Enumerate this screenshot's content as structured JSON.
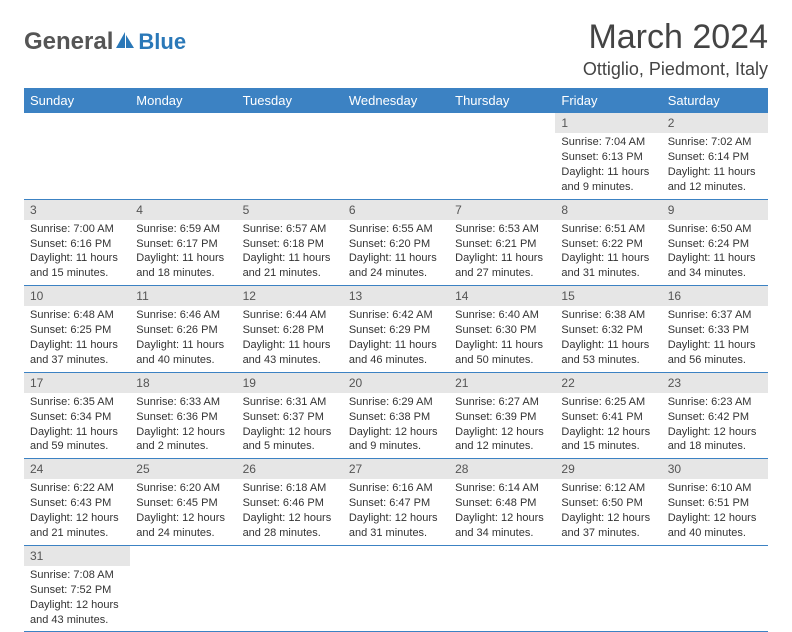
{
  "logo": {
    "text1": "General",
    "text2": "Blue"
  },
  "title": "March 2024",
  "location": "Ottiglio, Piedmont, Italy",
  "colors": {
    "header_bg": "#3c82c3",
    "header_fg": "#ffffff",
    "daynum_bg": "#e6e6e6",
    "rule": "#3c82c3",
    "logo_blue": "#2a78b8",
    "logo_gray": "#555555"
  },
  "weekdays": [
    "Sunday",
    "Monday",
    "Tuesday",
    "Wednesday",
    "Thursday",
    "Friday",
    "Saturday"
  ],
  "weeks": [
    [
      null,
      null,
      null,
      null,
      null,
      {
        "n": "1",
        "sunrise": "Sunrise: 7:04 AM",
        "sunset": "Sunset: 6:13 PM",
        "daylight": "Daylight: 11 hours and 9 minutes."
      },
      {
        "n": "2",
        "sunrise": "Sunrise: 7:02 AM",
        "sunset": "Sunset: 6:14 PM",
        "daylight": "Daylight: 11 hours and 12 minutes."
      }
    ],
    [
      {
        "n": "3",
        "sunrise": "Sunrise: 7:00 AM",
        "sunset": "Sunset: 6:16 PM",
        "daylight": "Daylight: 11 hours and 15 minutes."
      },
      {
        "n": "4",
        "sunrise": "Sunrise: 6:59 AM",
        "sunset": "Sunset: 6:17 PM",
        "daylight": "Daylight: 11 hours and 18 minutes."
      },
      {
        "n": "5",
        "sunrise": "Sunrise: 6:57 AM",
        "sunset": "Sunset: 6:18 PM",
        "daylight": "Daylight: 11 hours and 21 minutes."
      },
      {
        "n": "6",
        "sunrise": "Sunrise: 6:55 AM",
        "sunset": "Sunset: 6:20 PM",
        "daylight": "Daylight: 11 hours and 24 minutes."
      },
      {
        "n": "7",
        "sunrise": "Sunrise: 6:53 AM",
        "sunset": "Sunset: 6:21 PM",
        "daylight": "Daylight: 11 hours and 27 minutes."
      },
      {
        "n": "8",
        "sunrise": "Sunrise: 6:51 AM",
        "sunset": "Sunset: 6:22 PM",
        "daylight": "Daylight: 11 hours and 31 minutes."
      },
      {
        "n": "9",
        "sunrise": "Sunrise: 6:50 AM",
        "sunset": "Sunset: 6:24 PM",
        "daylight": "Daylight: 11 hours and 34 minutes."
      }
    ],
    [
      {
        "n": "10",
        "sunrise": "Sunrise: 6:48 AM",
        "sunset": "Sunset: 6:25 PM",
        "daylight": "Daylight: 11 hours and 37 minutes."
      },
      {
        "n": "11",
        "sunrise": "Sunrise: 6:46 AM",
        "sunset": "Sunset: 6:26 PM",
        "daylight": "Daylight: 11 hours and 40 minutes."
      },
      {
        "n": "12",
        "sunrise": "Sunrise: 6:44 AM",
        "sunset": "Sunset: 6:28 PM",
        "daylight": "Daylight: 11 hours and 43 minutes."
      },
      {
        "n": "13",
        "sunrise": "Sunrise: 6:42 AM",
        "sunset": "Sunset: 6:29 PM",
        "daylight": "Daylight: 11 hours and 46 minutes."
      },
      {
        "n": "14",
        "sunrise": "Sunrise: 6:40 AM",
        "sunset": "Sunset: 6:30 PM",
        "daylight": "Daylight: 11 hours and 50 minutes."
      },
      {
        "n": "15",
        "sunrise": "Sunrise: 6:38 AM",
        "sunset": "Sunset: 6:32 PM",
        "daylight": "Daylight: 11 hours and 53 minutes."
      },
      {
        "n": "16",
        "sunrise": "Sunrise: 6:37 AM",
        "sunset": "Sunset: 6:33 PM",
        "daylight": "Daylight: 11 hours and 56 minutes."
      }
    ],
    [
      {
        "n": "17",
        "sunrise": "Sunrise: 6:35 AM",
        "sunset": "Sunset: 6:34 PM",
        "daylight": "Daylight: 11 hours and 59 minutes."
      },
      {
        "n": "18",
        "sunrise": "Sunrise: 6:33 AM",
        "sunset": "Sunset: 6:36 PM",
        "daylight": "Daylight: 12 hours and 2 minutes."
      },
      {
        "n": "19",
        "sunrise": "Sunrise: 6:31 AM",
        "sunset": "Sunset: 6:37 PM",
        "daylight": "Daylight: 12 hours and 5 minutes."
      },
      {
        "n": "20",
        "sunrise": "Sunrise: 6:29 AM",
        "sunset": "Sunset: 6:38 PM",
        "daylight": "Daylight: 12 hours and 9 minutes."
      },
      {
        "n": "21",
        "sunrise": "Sunrise: 6:27 AM",
        "sunset": "Sunset: 6:39 PM",
        "daylight": "Daylight: 12 hours and 12 minutes."
      },
      {
        "n": "22",
        "sunrise": "Sunrise: 6:25 AM",
        "sunset": "Sunset: 6:41 PM",
        "daylight": "Daylight: 12 hours and 15 minutes."
      },
      {
        "n": "23",
        "sunrise": "Sunrise: 6:23 AM",
        "sunset": "Sunset: 6:42 PM",
        "daylight": "Daylight: 12 hours and 18 minutes."
      }
    ],
    [
      {
        "n": "24",
        "sunrise": "Sunrise: 6:22 AM",
        "sunset": "Sunset: 6:43 PM",
        "daylight": "Daylight: 12 hours and 21 minutes."
      },
      {
        "n": "25",
        "sunrise": "Sunrise: 6:20 AM",
        "sunset": "Sunset: 6:45 PM",
        "daylight": "Daylight: 12 hours and 24 minutes."
      },
      {
        "n": "26",
        "sunrise": "Sunrise: 6:18 AM",
        "sunset": "Sunset: 6:46 PM",
        "daylight": "Daylight: 12 hours and 28 minutes."
      },
      {
        "n": "27",
        "sunrise": "Sunrise: 6:16 AM",
        "sunset": "Sunset: 6:47 PM",
        "daylight": "Daylight: 12 hours and 31 minutes."
      },
      {
        "n": "28",
        "sunrise": "Sunrise: 6:14 AM",
        "sunset": "Sunset: 6:48 PM",
        "daylight": "Daylight: 12 hours and 34 minutes."
      },
      {
        "n": "29",
        "sunrise": "Sunrise: 6:12 AM",
        "sunset": "Sunset: 6:50 PM",
        "daylight": "Daylight: 12 hours and 37 minutes."
      },
      {
        "n": "30",
        "sunrise": "Sunrise: 6:10 AM",
        "sunset": "Sunset: 6:51 PM",
        "daylight": "Daylight: 12 hours and 40 minutes."
      }
    ],
    [
      {
        "n": "31",
        "sunrise": "Sunrise: 7:08 AM",
        "sunset": "Sunset: 7:52 PM",
        "daylight": "Daylight: 12 hours and 43 minutes."
      },
      null,
      null,
      null,
      null,
      null,
      null
    ]
  ]
}
